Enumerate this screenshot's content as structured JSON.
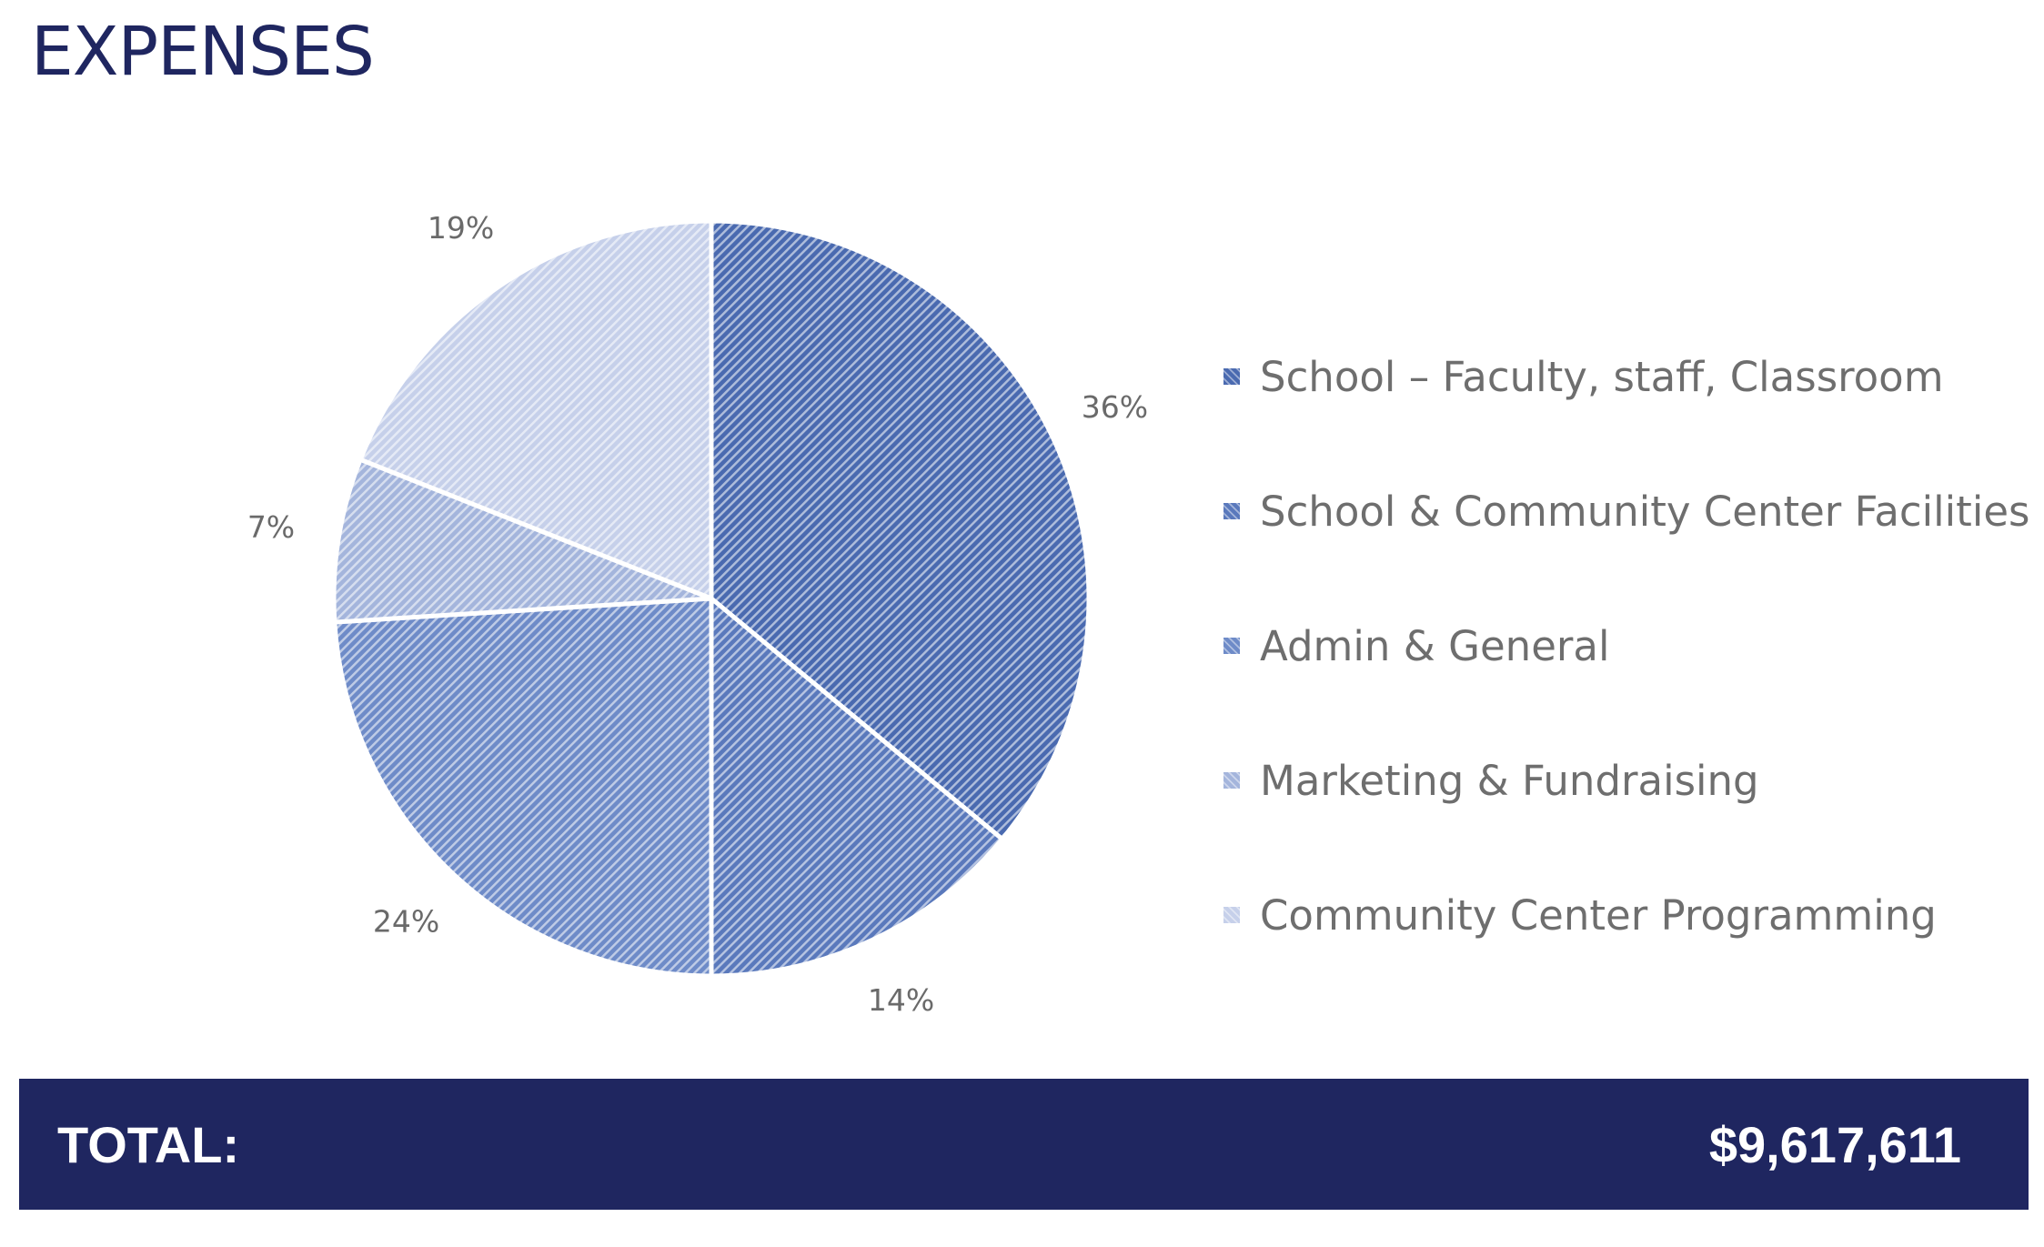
{
  "title": "EXPENSES",
  "chart_data": {
    "type": "pie",
    "start_angle_deg": 0,
    "direction": "clockwise",
    "slices": [
      {
        "label": "School – Faculty, staff, Classroom",
        "value": 36,
        "display": "36%",
        "color": "#4a6ab0"
      },
      {
        "label": "School & Community Center Facilities",
        "value": 14,
        "display": "14%",
        "color": "#5a79bc"
      },
      {
        "label": "Admin & General",
        "value": 24,
        "display": "24%",
        "color": "#6e8bc8"
      },
      {
        "label": "Marketing & Fundraising",
        "value": 7,
        "display": "7%",
        "color": "#a4b5dc"
      },
      {
        "label": "Community Center Programming",
        "value": 19,
        "display": "19%",
        "color": "#c6d0ea"
      }
    ],
    "legend_position": "right"
  },
  "total": {
    "label": "TOTAL:",
    "value": "$9,617,611"
  }
}
